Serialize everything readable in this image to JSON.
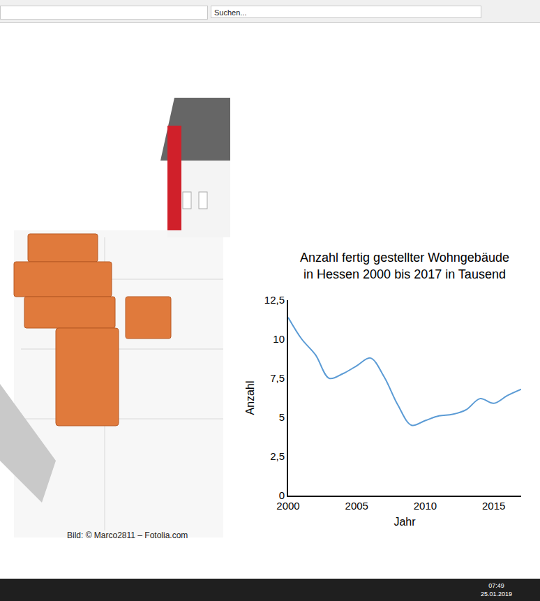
{
  "browser": {
    "search_placeholder": "Suchen...",
    "clock_time": "07:49",
    "clock_date": "25.01.2019"
  },
  "image_credit": "Bild: © Marco2811 – Fotolia.com",
  "chart_data": {
    "type": "line",
    "title": "Anzahl fertig gestellter Wohngebäude in Hessen 2000 bis 2017 in Tausend",
    "x_label": "Jahr",
    "y_label": "Anzahl",
    "x": [
      2000,
      2001,
      2002,
      2003,
      2004,
      2005,
      2006,
      2007,
      2008,
      2009,
      2010,
      2011,
      2012,
      2013,
      2014,
      2015,
      2016,
      2017
    ],
    "values": [
      11.4,
      10.0,
      9.0,
      7.5,
      7.8,
      8.3,
      8.8,
      7.6,
      5.8,
      4.5,
      4.8,
      5.1,
      5.2,
      5.5,
      6.2,
      5.9,
      6.4,
      6.8
    ],
    "color": "#5b9bd5",
    "line_style": "solid",
    "xlim": [
      2000,
      2017
    ],
    "xticks": [
      2000,
      2005,
      2010,
      2015
    ],
    "ylim": [
      0,
      12.5
    ],
    "yticks": [
      0,
      {
        "value": 2.5,
        "label": "2,5"
      },
      5,
      {
        "value": 7.5,
        "label": "7,5"
      },
      10,
      {
        "value": 12.5,
        "label": "12,5"
      }
    ],
    "grid": false
  }
}
